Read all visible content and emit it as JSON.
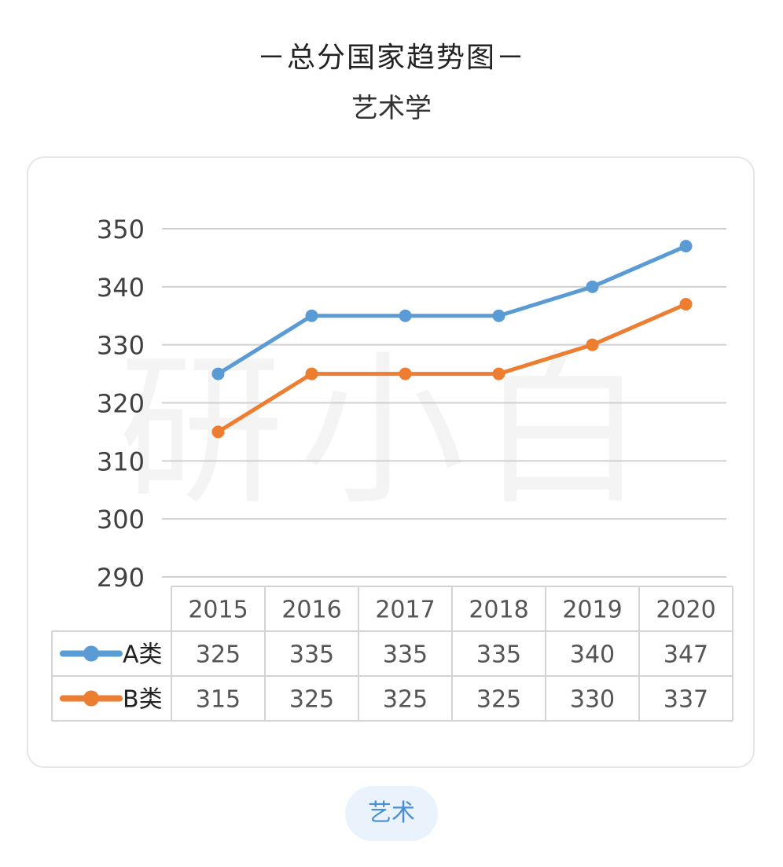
{
  "header": {
    "title": "－总分国家趋势图－",
    "subtitle": "艺术学"
  },
  "tag": {
    "label": "艺术"
  },
  "watermark": {
    "text": "研小白"
  },
  "chart_data": {
    "type": "line",
    "categories": [
      "2015",
      "2016",
      "2017",
      "2018",
      "2019",
      "2020"
    ],
    "series": [
      {
        "name": "A类",
        "values": [
          325,
          335,
          335,
          335,
          340,
          347
        ],
        "color": "#5b9bd5"
      },
      {
        "name": "B类",
        "values": [
          315,
          325,
          325,
          325,
          330,
          337
        ],
        "color": "#ed7d31"
      }
    ],
    "ylim": [
      290,
      350
    ],
    "yticks": [
      290,
      300,
      310,
      320,
      330,
      340,
      350
    ],
    "grid": true,
    "data_table": true
  }
}
